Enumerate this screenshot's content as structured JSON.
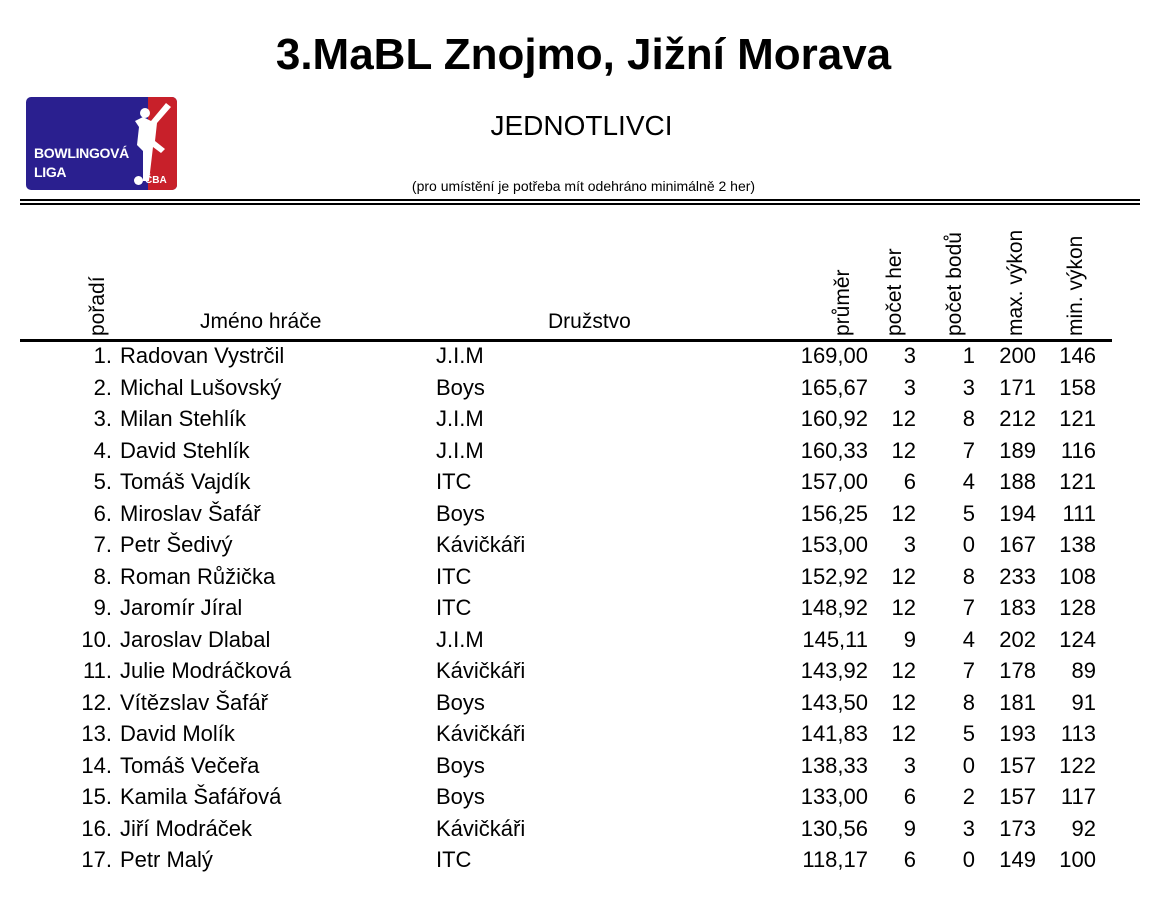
{
  "title": "3.MaBL Znojmo, Jižní Morava",
  "subtitle": "JEDNOTLIVCI",
  "note": "(pro umístění je potřeba mít odehráno minimálně 2 her)",
  "logo": {
    "line1": "BOWLINGOVÁ",
    "line2": "LIGA",
    "badge": "ČBA",
    "colors": {
      "blue": "#2a1f8f",
      "red": "#c8202a"
    }
  },
  "headers": {
    "rank": "pořadí",
    "name": "Jméno hráče",
    "team": "Družstvo",
    "avg": "průměr",
    "games": "počet her",
    "points": "počet bodů",
    "max": "max. výkon",
    "min": "min. výkon"
  },
  "rows": [
    {
      "rank": "1.",
      "name": "Radovan Vystrčil",
      "team": "J.I.M",
      "avg": "169,00",
      "games": "3",
      "points": "1",
      "max": "200",
      "min": "146"
    },
    {
      "rank": "2.",
      "name": "Michal Lušovský",
      "team": "Boys",
      "avg": "165,67",
      "games": "3",
      "points": "3",
      "max": "171",
      "min": "158"
    },
    {
      "rank": "3.",
      "name": "Milan Stehlík",
      "team": "J.I.M",
      "avg": "160,92",
      "games": "12",
      "points": "8",
      "max": "212",
      "min": "121"
    },
    {
      "rank": "4.",
      "name": "David Stehlík",
      "team": "J.I.M",
      "avg": "160,33",
      "games": "12",
      "points": "7",
      "max": "189",
      "min": "116"
    },
    {
      "rank": "5.",
      "name": "Tomáš Vajdík",
      "team": "ITC",
      "avg": "157,00",
      "games": "6",
      "points": "4",
      "max": "188",
      "min": "121"
    },
    {
      "rank": "6.",
      "name": "Miroslav Šafář",
      "team": "Boys",
      "avg": "156,25",
      "games": "12",
      "points": "5",
      "max": "194",
      "min": "111"
    },
    {
      "rank": "7.",
      "name": "Petr Šedivý",
      "team": "Kávičkáři",
      "avg": "153,00",
      "games": "3",
      "points": "0",
      "max": "167",
      "min": "138"
    },
    {
      "rank": "8.",
      "name": "Roman Růžička",
      "team": "ITC",
      "avg": "152,92",
      "games": "12",
      "points": "8",
      "max": "233",
      "min": "108"
    },
    {
      "rank": "9.",
      "name": "Jaromír Jíral",
      "team": "ITC",
      "avg": "148,92",
      "games": "12",
      "points": "7",
      "max": "183",
      "min": "128"
    },
    {
      "rank": "10.",
      "name": "Jaroslav Dlabal",
      "team": "J.I.M",
      "avg": "145,11",
      "games": "9",
      "points": "4",
      "max": "202",
      "min": "124"
    },
    {
      "rank": "11.",
      "name": "Julie Modráčková",
      "team": "Kávičkáři",
      "avg": "143,92",
      "games": "12",
      "points": "7",
      "max": "178",
      "min": "89"
    },
    {
      "rank": "12.",
      "name": "Vítězslav Šafář",
      "team": "Boys",
      "avg": "143,50",
      "games": "12",
      "points": "8",
      "max": "181",
      "min": "91"
    },
    {
      "rank": "13.",
      "name": "David Molík",
      "team": "Kávičkáři",
      "avg": "141,83",
      "games": "12",
      "points": "5",
      "max": "193",
      "min": "113"
    },
    {
      "rank": "14.",
      "name": "Tomáš Večeřa",
      "team": "Boys",
      "avg": "138,33",
      "games": "3",
      "points": "0",
      "max": "157",
      "min": "122"
    },
    {
      "rank": "15.",
      "name": "Kamila Šafářová",
      "team": "Boys",
      "avg": "133,00",
      "games": "6",
      "points": "2",
      "max": "157",
      "min": "117"
    },
    {
      "rank": "16.",
      "name": "Jiří Modráček",
      "team": "Kávičkáři",
      "avg": "130,56",
      "games": "9",
      "points": "3",
      "max": "173",
      "min": "92"
    },
    {
      "rank": "17.",
      "name": "Petr Malý",
      "team": "ITC",
      "avg": "118,17",
      "games": "6",
      "points": "0",
      "max": "149",
      "min": "100"
    }
  ]
}
